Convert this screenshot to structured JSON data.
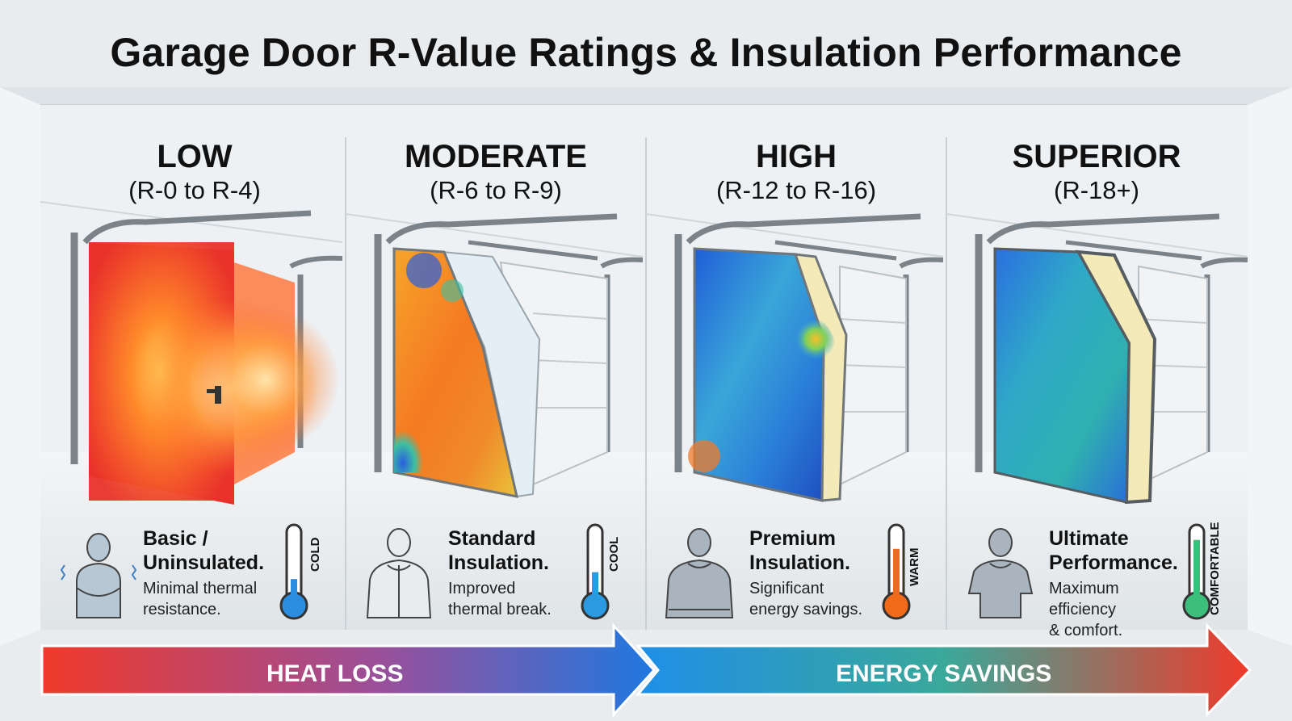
{
  "title": "Garage Door R-Value Ratings & Insulation Performance",
  "panels": [
    {
      "level": "LOW",
      "range": "(R-0 to R-4)",
      "heading_1": "Basic /",
      "heading_2": "Uninsulated.",
      "desc_1": "Minimal thermal",
      "desc_2": "resistance.",
      "thermo_label": "COLD",
      "thermo_fill": 0.28,
      "thermo_color": "#2a8de0",
      "door_style": "hot",
      "person": "shivering-person-icon"
    },
    {
      "level": "MODERATE",
      "range": "(R-6 to R-9)",
      "heading_1": "Standard",
      "heading_2": "Insulation.",
      "desc_1": "Improved",
      "desc_2": "thermal break.",
      "thermo_label": "COOL",
      "thermo_fill": 0.38,
      "thermo_color": "#2a9be0",
      "door_style": "warm",
      "person": "jacket-person-icon"
    },
    {
      "level": "HIGH",
      "range": "(R-12 to R-16)",
      "heading_1": "Premium",
      "heading_2": "Insulation.",
      "desc_1": "Significant",
      "desc_2": "energy savings.",
      "thermo_label": "WARM",
      "thermo_fill": 0.72,
      "thermo_color": "#f06a1a",
      "door_style": "cool",
      "person": "sweater-person-icon"
    },
    {
      "level": "SUPERIOR",
      "range": "(R-18+)",
      "heading_1": "Ultimate",
      "heading_2": "Performance.",
      "desc_1": "Maximum efficiency",
      "desc_2": "& comfort.",
      "thermo_label": "COMFORTABLE",
      "thermo_fill": 0.85,
      "thermo_color": "#3cbf7a",
      "door_style": "cold",
      "person": "tshirt-person-icon"
    }
  ],
  "arrows": {
    "left_label": "HEAT LOSS",
    "right_label": "ENERGY SAVINGS"
  },
  "colors": {
    "hot": "#f04a2a",
    "cool": "#1e6fd8",
    "accent_green": "#3cbf7a",
    "insulation": "#f4eab8"
  }
}
